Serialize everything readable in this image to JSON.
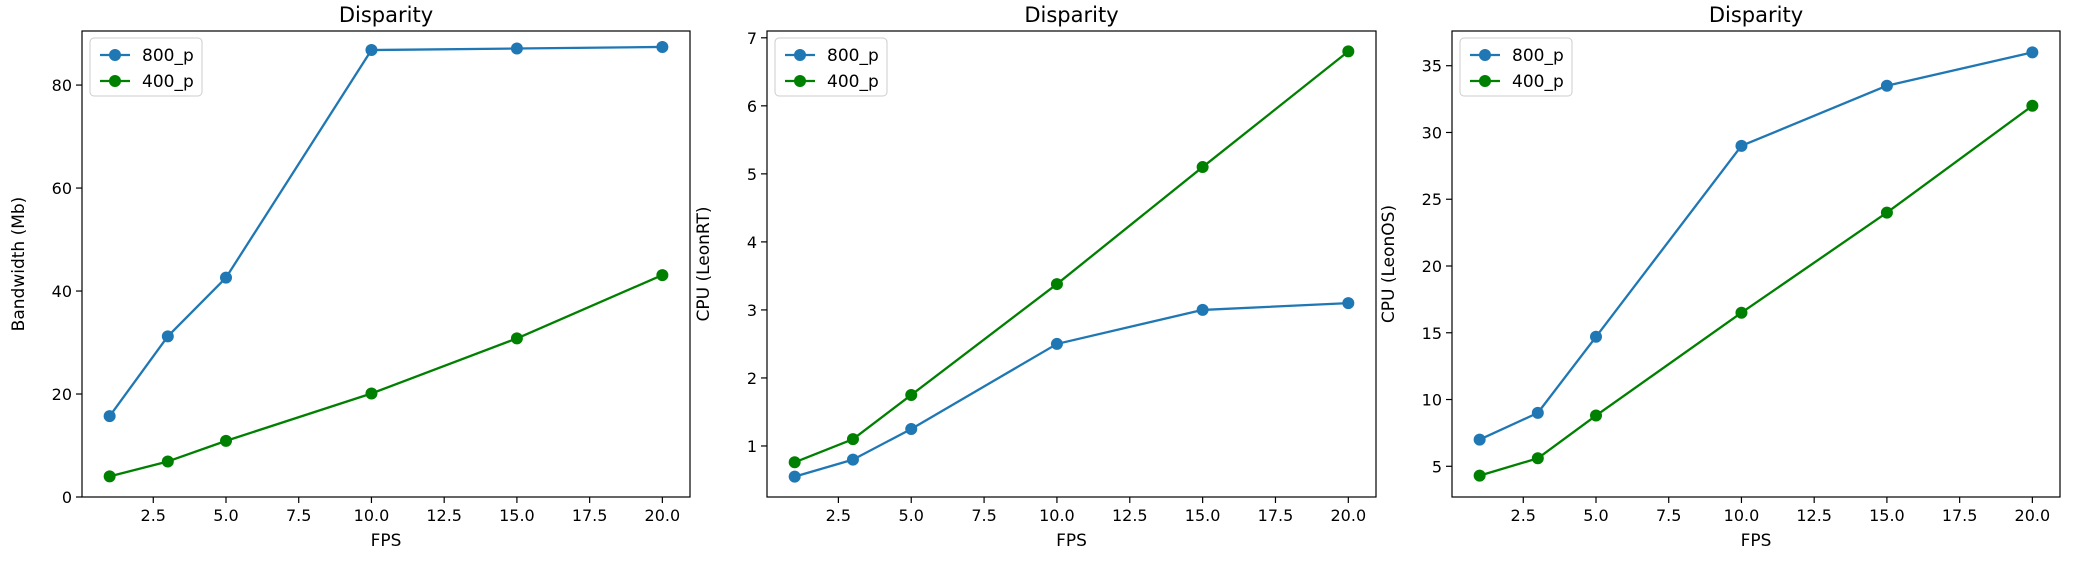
{
  "chart_data": [
    {
      "type": "line",
      "title": "Disparity",
      "xlabel": "FPS",
      "ylabel": "Bandwidth (Mb)",
      "xlim": [
        0.05,
        20.95
      ],
      "ylim": [
        0,
        90.5
      ],
      "xticks": [
        2.5,
        5.0,
        7.5,
        10.0,
        12.5,
        15.0,
        17.5,
        20.0
      ],
      "xtick_labels": [
        "2.5",
        "5.0",
        "7.5",
        "10.0",
        "12.5",
        "15.0",
        "17.5",
        "20.0"
      ],
      "yticks": [
        0,
        20,
        40,
        60,
        80
      ],
      "ytick_labels": [
        "0",
        "20",
        "40",
        "60",
        "80"
      ],
      "legend_position": "top-left",
      "grid": false,
      "x": [
        1,
        3,
        5,
        10,
        15,
        20
      ],
      "series": [
        {
          "name": "800_p",
          "color": "#1f77b4",
          "values": [
            15.7,
            31.2,
            42.6,
            86.8,
            87.1,
            87.4
          ]
        },
        {
          "name": "400_p",
          "color": "#008000",
          "values": [
            4.0,
            6.9,
            10.9,
            20.1,
            30.8,
            43.1
          ]
        }
      ]
    },
    {
      "type": "line",
      "title": "Disparity",
      "xlabel": "FPS",
      "ylabel": "CPU (LeonRT)",
      "xlim": [
        0.05,
        20.95
      ],
      "ylim": [
        0.25,
        7.1
      ],
      "xticks": [
        2.5,
        5.0,
        7.5,
        10.0,
        12.5,
        15.0,
        17.5,
        20.0
      ],
      "xtick_labels": [
        "2.5",
        "5.0",
        "7.5",
        "10.0",
        "12.5",
        "15.0",
        "17.5",
        "20.0"
      ],
      "yticks": [
        1,
        2,
        3,
        4,
        5,
        6,
        7
      ],
      "ytick_labels": [
        "1",
        "2",
        "3",
        "4",
        "5",
        "6",
        "7"
      ],
      "legend_position": "top-left",
      "grid": false,
      "x": [
        1,
        3,
        5,
        10,
        15,
        20
      ],
      "series": [
        {
          "name": "800_p",
          "color": "#1f77b4",
          "values": [
            0.55,
            0.8,
            1.25,
            2.5,
            3.0,
            3.1
          ]
        },
        {
          "name": "400_p",
          "color": "#008000",
          "values": [
            0.76,
            1.1,
            1.75,
            3.38,
            5.1,
            6.8
          ]
        }
      ]
    },
    {
      "type": "line",
      "title": "Disparity",
      "xlabel": "FPS",
      "ylabel": "CPU (LeonOS)",
      "xlim": [
        0.05,
        20.95
      ],
      "ylim": [
        2.7,
        37.6
      ],
      "xticks": [
        2.5,
        5.0,
        7.5,
        10.0,
        12.5,
        15.0,
        17.5,
        20.0
      ],
      "xtick_labels": [
        "2.5",
        "5.0",
        "7.5",
        "10.0",
        "12.5",
        "15.0",
        "17.5",
        "20.0"
      ],
      "yticks": [
        5,
        10,
        15,
        20,
        25,
        30,
        35
      ],
      "ytick_labels": [
        "5",
        "10",
        "15",
        "20",
        "25",
        "30",
        "35"
      ],
      "legend_position": "top-left",
      "grid": false,
      "x": [
        1,
        3,
        5,
        10,
        15,
        20
      ],
      "series": [
        {
          "name": "800_p",
          "color": "#1f77b4",
          "values": [
            7.0,
            9.0,
            14.7,
            29.0,
            33.5,
            36.0
          ]
        },
        {
          "name": "400_p",
          "color": "#008000",
          "values": [
            4.3,
            5.6,
            8.8,
            16.5,
            24.0,
            32.0
          ]
        }
      ]
    }
  ]
}
